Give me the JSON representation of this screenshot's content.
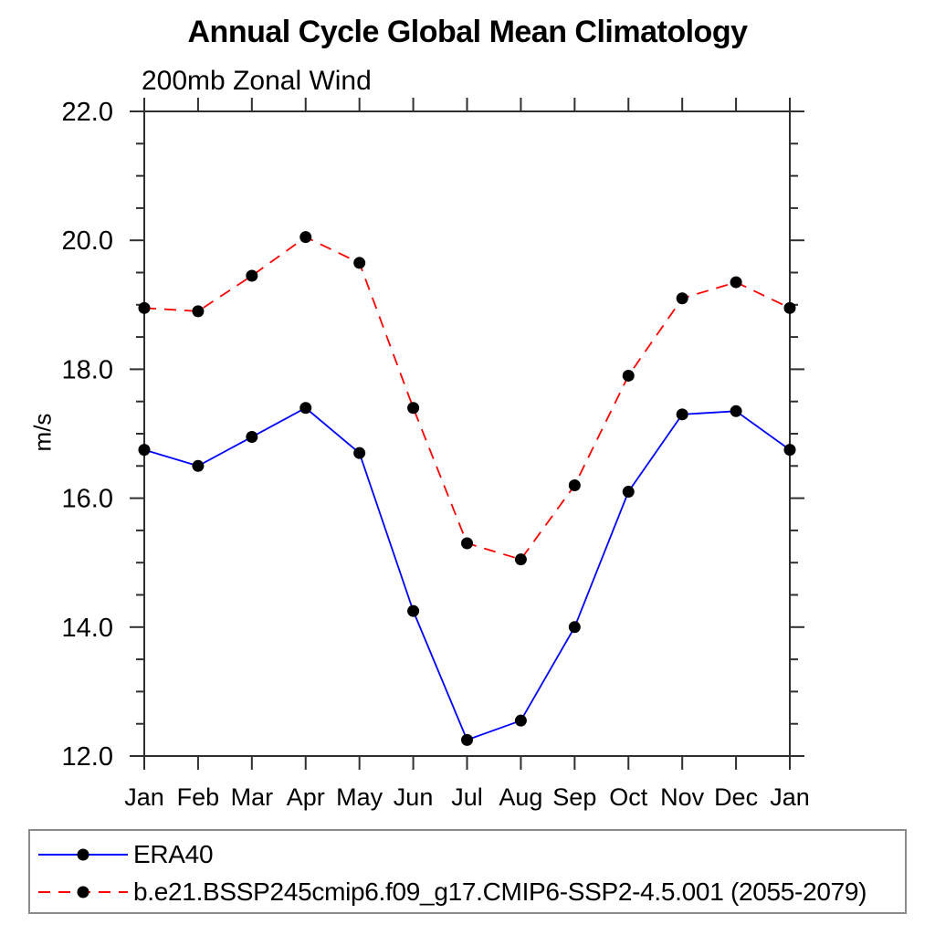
{
  "chart_data": {
    "type": "line",
    "title": "Annual Cycle Global Mean Climatology",
    "subtitle": "200mb Zonal Wind",
    "ylabel": "m/s",
    "categories": [
      "Jan",
      "Feb",
      "Mar",
      "Apr",
      "May",
      "Jun",
      "Jul",
      "Aug",
      "Sep",
      "Oct",
      "Nov",
      "Dec",
      "Jan"
    ],
    "ylim": [
      12.0,
      22.0
    ],
    "ytick_major": [
      12.0,
      14.0,
      16.0,
      18.0,
      20.0,
      22.0
    ],
    "ytick_major_labels": [
      "12.0",
      "14.0",
      "16.0",
      "18.0",
      "20.0",
      "22.0"
    ],
    "ytick_minor_step": 0.5,
    "grid": false,
    "legend_position": "bottom-left-box",
    "axis_color": "#2f2f2f",
    "marker": {
      "shape": "circle",
      "color": "#000000",
      "radius": 6.5
    },
    "series": [
      {
        "name": "ERA40",
        "color": "#0000ff",
        "dash": "solid",
        "values": [
          16.75,
          16.5,
          16.95,
          17.4,
          16.7,
          14.25,
          12.25,
          12.55,
          14.0,
          16.1,
          17.3,
          17.35,
          16.75
        ]
      },
      {
        "name": "b.e21.BSSP245cmip6.f09_g17.CMIP6-SSP2-4.5.001 (2055-2079)",
        "color": "#ff0000",
        "dash": "dashed",
        "values": [
          18.95,
          18.9,
          19.45,
          20.05,
          19.65,
          17.4,
          15.3,
          15.05,
          16.2,
          17.9,
          19.1,
          19.35,
          18.95
        ]
      }
    ]
  }
}
